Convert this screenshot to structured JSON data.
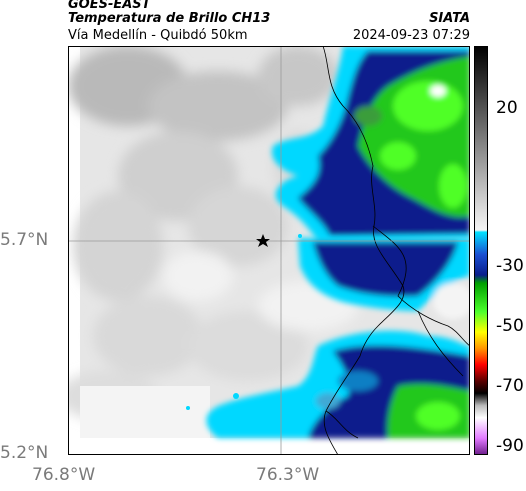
{
  "header": {
    "satellite": "GOES-EAST",
    "product": "Temperatura de Brillo CH13",
    "organization": "SIATA",
    "subtitle": "Vía Medellín - Quibdó 50km",
    "timestamp": "2024-09-23 07:29"
  },
  "map": {
    "lat_labels": [
      "5.7°N",
      "5.2°N"
    ],
    "lon_labels": [
      "76.8°W",
      "76.3°W"
    ],
    "marker_icon": "star-icon"
  },
  "colorbar": {
    "ticks": [
      "20",
      "-30",
      "-50",
      "-70",
      "-90"
    ]
  },
  "colors": {
    "warm_gray": "#c8c8c8",
    "light_gray": "#efefef",
    "cyan": "#00d8ff",
    "dark_blue": "#0a1e8c",
    "green": "#22c81e",
    "bright_green": "#50ff28"
  }
}
